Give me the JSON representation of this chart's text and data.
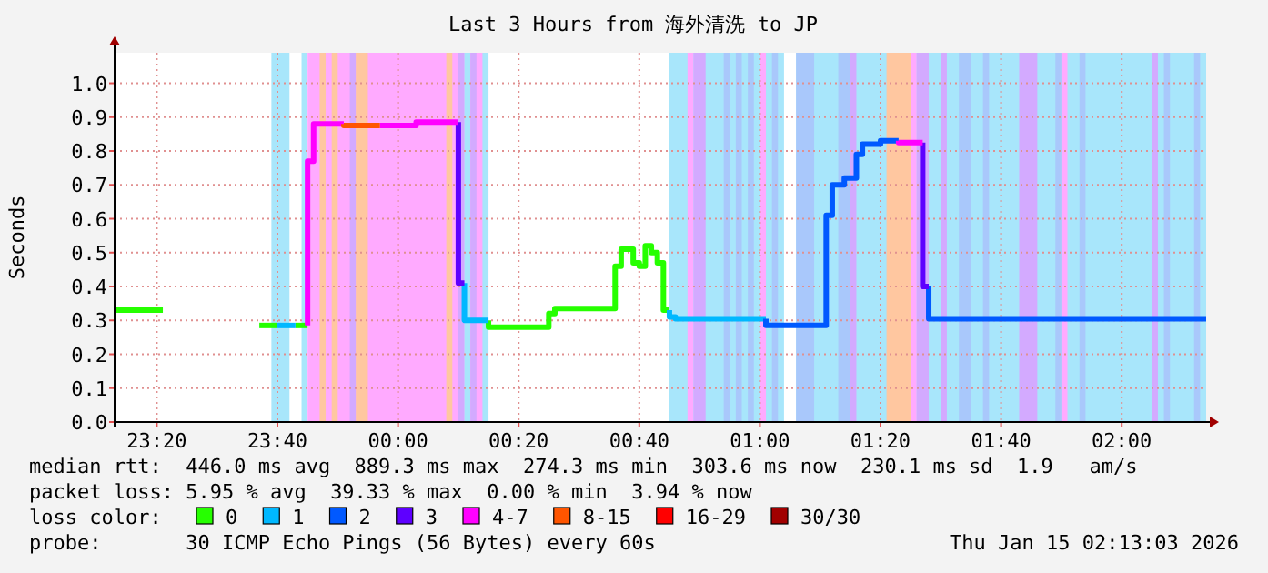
{
  "chart_data": {
    "type": "step",
    "title": "Last 3 Hours from 海外清洗 to JP",
    "ylabel": "Seconds",
    "grid": true,
    "legend": "bottom",
    "legend_title": "loss color:",
    "xlim": [
      "2026-01-14T23:13",
      "2026-01-15T02:14"
    ],
    "ylim": [
      0,
      1.09
    ],
    "xticks": [
      {
        "value": "2026-01-14T23:20",
        "label": "23:20"
      },
      {
        "value": "2026-01-14T23:40",
        "label": "23:40"
      },
      {
        "value": "2026-01-15T00:00",
        "label": "00:00"
      },
      {
        "value": "2026-01-15T00:20",
        "label": "00:20"
      },
      {
        "value": "2026-01-15T00:40",
        "label": "00:40"
      },
      {
        "value": "2026-01-15T01:00",
        "label": "01:00"
      },
      {
        "value": "2026-01-15T01:20",
        "label": "01:20"
      },
      {
        "value": "2026-01-15T01:40",
        "label": "01:40"
      },
      {
        "value": "2026-01-15T02:00",
        "label": "02:00"
      }
    ],
    "yticks": [
      {
        "value": 0,
        "label": "0.0"
      },
      0.1,
      0.2,
      0.3,
      0.4,
      0.5,
      0.6,
      0.7,
      0.8,
      0.9,
      {
        "value": 1,
        "label": "1.0"
      }
    ],
    "series": [
      {
        "name": "0",
        "color": "#26ff00",
        "x": [
          "2026-01-14T23:13",
          "2026-01-14T23:21"
        ],
        "values": [
          0.33,
          0.33
        ]
      },
      {
        "color": "#26ff00",
        "x": [
          "2026-01-14T23:37",
          "2026-01-14T23:40"
        ],
        "values": [
          0.285,
          0.285
        ]
      },
      {
        "color": "#26ff00",
        "x": [
          "2026-01-14T23:43",
          "2026-01-14T23:45"
        ],
        "values": [
          0.285,
          0.285
        ]
      },
      {
        "color": "#26ff00",
        "x": [
          "2026-01-15T00:15",
          "2026-01-15T00:25",
          "2026-01-15T00:26",
          "2026-01-15T00:36",
          "2026-01-15T00:37",
          "2026-01-15T00:39",
          "2026-01-15T00:40",
          "2026-01-15T00:41",
          "2026-01-15T00:42",
          "2026-01-15T00:43",
          "2026-01-15T00:44",
          "2026-01-15T00:45"
        ],
        "values": [
          0.3,
          0.28,
          0.32,
          0.335,
          0.46,
          0.51,
          0.47,
          0.46,
          0.52,
          0.5,
          0.47,
          0.33
        ]
      },
      {
        "name": "1",
        "color": "#00b8ff",
        "x": [
          "2026-01-14T23:40",
          "2026-01-14T23:43"
        ],
        "values": [
          0.285,
          0.285
        ]
      },
      {
        "color": "#00b8ff",
        "x": [
          "2026-01-15T00:11",
          "2026-01-15T00:15"
        ],
        "values": [
          0.41,
          0.3
        ]
      },
      {
        "color": "#00b8ff",
        "x": [
          "2026-01-15T00:45",
          "2026-01-15T00:46",
          "2026-01-15T01:01"
        ],
        "values": [
          0.33,
          0.31,
          0.305
        ]
      },
      {
        "name": "2",
        "color": "#0059ff",
        "x": [
          "2026-01-15T01:01",
          "2026-01-15T01:11",
          "2026-01-15T01:12",
          "2026-01-15T01:14",
          "2026-01-15T01:16",
          "2026-01-15T01:17",
          "2026-01-15T01:20",
          "2026-01-15T01:23"
        ],
        "values": [
          0.305,
          0.285,
          0.61,
          0.7,
          0.72,
          0.79,
          0.82,
          0.83
        ]
      },
      {
        "color": "#0059ff",
        "x": [
          "2026-01-15T01:28",
          "2026-01-15T02:14"
        ],
        "values": [
          0.4,
          0.305
        ]
      },
      {
        "name": "3",
        "color": "#5e00ff",
        "x": [
          "2026-01-15T00:10",
          "2026-01-15T00:11"
        ],
        "values": [
          0.885,
          0.41
        ]
      },
      {
        "color": "#5e00ff",
        "x": [
          "2026-01-15T01:27",
          "2026-01-15T01:28"
        ],
        "values": [
          0.825,
          0.4
        ]
      },
      {
        "name": "4-7",
        "color": "#ff00ff",
        "x": [
          "2026-01-14T23:45",
          "2026-01-14T23:46",
          "2026-01-14T23:51"
        ],
        "values": [
          0.285,
          0.77,
          0.88
        ]
      },
      {
        "color": "#ff00ff",
        "x": [
          "2026-01-14T23:57",
          "2026-01-15T00:03",
          "2026-01-15T00:10"
        ],
        "values": [
          0.875,
          0.875,
          0.885
        ]
      },
      {
        "color": "#ff00ff",
        "x": [
          "2026-01-15T01:23",
          "2026-01-15T01:27"
        ],
        "values": [
          0.83,
          0.825
        ]
      },
      {
        "name": "8-15",
        "color": "#ff5500",
        "x": [
          "2026-01-14T23:51",
          "2026-01-14T23:57"
        ],
        "values": [
          0.88,
          0.875
        ]
      },
      {
        "name": "16-29",
        "color": "#ff0000"
      },
      {
        "name": "30/30",
        "color": "#a10000"
      }
    ],
    "bands": [
      {
        "axis": "x",
        "from": "2026-01-14T23:39",
        "to": "2026-01-14T23:42",
        "color": "#a8e6fb"
      },
      {
        "axis": "x",
        "from": "2026-01-14T23:44",
        "to": "2026-01-14T23:45",
        "color": "#a8e6fb"
      },
      {
        "axis": "x",
        "from": "2026-01-14T23:45",
        "to": "2026-01-15T00:15",
        "color": "#ffaaff"
      },
      {
        "axis": "x",
        "from": "2026-01-14T23:47",
        "to": "2026-01-14T23:48",
        "color": "#ffc7a0"
      },
      {
        "axis": "x",
        "from": "2026-01-14T23:49",
        "to": "2026-01-14T23:50",
        "color": "#ffc7a0"
      },
      {
        "axis": "x",
        "from": "2026-01-14T23:52",
        "to": "2026-01-14T23:53",
        "color": "#d3aaff"
      },
      {
        "axis": "x",
        "from": "2026-01-14T23:53",
        "to": "2026-01-14T23:55",
        "color": "#ffc7a0"
      },
      {
        "axis": "x",
        "from": "2026-01-15T00:08",
        "to": "2026-01-15T00:09",
        "color": "#ffc7a0"
      },
      {
        "axis": "x",
        "from": "2026-01-15T00:10",
        "to": "2026-01-15T00:11",
        "color": "#d3aaff"
      },
      {
        "axis": "x",
        "from": "2026-01-15T00:11",
        "to": "2026-01-15T00:12",
        "color": "#a8e6fb"
      },
      {
        "axis": "x",
        "from": "2026-01-15T00:12",
        "to": "2026-01-15T00:13",
        "color": "#d3aaff"
      },
      {
        "axis": "x",
        "from": "2026-01-15T00:14",
        "to": "2026-01-15T00:15",
        "color": "#a8e6fb"
      },
      {
        "axis": "x",
        "from": "2026-01-15T00:45",
        "to": "2026-01-15T01:04",
        "color": "#a8e6fb"
      },
      {
        "axis": "x",
        "from": "2026-01-15T00:48",
        "to": "2026-01-15T00:49",
        "color": "#ffaaff"
      },
      {
        "axis": "x",
        "from": "2026-01-15T00:49",
        "to": "2026-01-15T00:51",
        "color": "#d3aaff"
      },
      {
        "axis": "x",
        "from": "2026-01-15T00:54",
        "to": "2026-01-15T00:55",
        "color": "#a9c8fb"
      },
      {
        "axis": "x",
        "from": "2026-01-15T00:56",
        "to": "2026-01-15T00:57",
        "color": "#a9c8fb"
      },
      {
        "axis": "x",
        "from": "2026-01-15T00:58",
        "to": "2026-01-15T00:59",
        "color": "#a9c8fb"
      },
      {
        "axis": "x",
        "from": "2026-01-15T01:00",
        "to": "2026-01-15T01:01",
        "color": "#ffaaff"
      },
      {
        "axis": "x",
        "from": "2026-01-15T01:02",
        "to": "2026-01-15T01:03",
        "color": "#a9c8fb"
      },
      {
        "axis": "x",
        "from": "2026-01-15T01:06",
        "to": "2026-01-15T02:14",
        "color": "#a8e6fb"
      },
      {
        "axis": "x",
        "from": "2026-01-15T01:06",
        "to": "2026-01-15T01:09",
        "color": "#a9c8fb"
      },
      {
        "axis": "x",
        "from": "2026-01-15T01:13",
        "to": "2026-01-15T01:15",
        "color": "#a9c8fb"
      },
      {
        "axis": "x",
        "from": "2026-01-15T01:15",
        "to": "2026-01-15T01:16",
        "color": "#d3aaff"
      },
      {
        "axis": "x",
        "from": "2026-01-15T01:21",
        "to": "2026-01-15T01:25",
        "color": "#ffc7a0"
      },
      {
        "axis": "x",
        "from": "2026-01-15T01:25",
        "to": "2026-01-15T01:26",
        "color": "#ffaaff"
      },
      {
        "axis": "x",
        "from": "2026-01-15T01:26",
        "to": "2026-01-15T01:28",
        "color": "#d3aaff"
      },
      {
        "axis": "x",
        "from": "2026-01-15T01:30",
        "to": "2026-01-15T01:31",
        "color": "#d3aaff"
      },
      {
        "axis": "x",
        "from": "2026-01-15T01:33",
        "to": "2026-01-15T01:35",
        "color": "#a9c8fb"
      },
      {
        "axis": "x",
        "from": "2026-01-15T01:37",
        "to": "2026-01-15T01:38",
        "color": "#a9c8fb"
      },
      {
        "axis": "x",
        "from": "2026-01-15T01:43",
        "to": "2026-01-15T01:46",
        "color": "#d3aaff"
      },
      {
        "axis": "x",
        "from": "2026-01-15T01:49",
        "to": "2026-01-15T01:50",
        "color": "#a9c8fb"
      },
      {
        "axis": "x",
        "from": "2026-01-15T01:50",
        "to": "2026-01-15T01:51",
        "color": "#ffaaff"
      },
      {
        "axis": "x",
        "from": "2026-01-15T01:53",
        "to": "2026-01-15T01:54",
        "color": "#a9c8fb"
      },
      {
        "axis": "x",
        "from": "2026-01-15T02:05",
        "to": "2026-01-15T02:06",
        "color": "#d3aaff"
      },
      {
        "axis": "x",
        "from": "2026-01-15T02:07",
        "to": "2026-01-15T02:08",
        "color": "#a9c8fb"
      },
      {
        "axis": "x",
        "from": "2026-01-15T02:12",
        "to": "2026-01-15T02:13",
        "color": "#a9c8fb"
      }
    ],
    "annotations": [
      "median rtt:  446.0 ms avg  889.3 ms max  274.3 ms min  303.6 ms now  230.1 ms sd  1.9   am/s",
      "packet loss: 5.95 % avg  39.33 % max  0.00 % min  3.94 % now",
      "probe:       30 ICMP Echo Pings (56 Bytes) every 60s",
      "Thu Jan 15 02:13:03 2026"
    ]
  }
}
